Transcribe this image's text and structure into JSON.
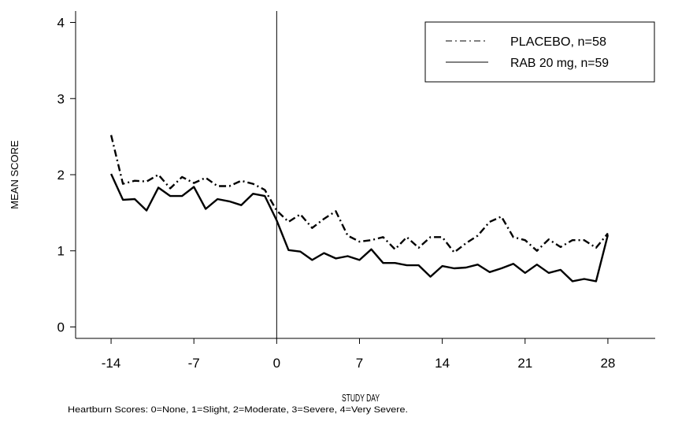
{
  "chart_data": {
    "type": "line",
    "title": "",
    "xlabel": "STUDY DAY",
    "ylabel": "MEAN SCORE",
    "footnote": "Heartburn Scores: 0=None, 1=Slight, 2=Moderate, 3=Severe, 4=Very Severe.",
    "xlim": [
      -17,
      32
    ],
    "ylim": [
      -0.15,
      4.15
    ],
    "x_ticks": [
      -14,
      -7,
      0,
      7,
      14,
      21,
      28
    ],
    "x_tick_labels": [
      "-14",
      "-7",
      "0",
      "7",
      "14",
      "21",
      "28"
    ],
    "y_ticks": [
      0,
      1,
      2,
      3,
      4
    ],
    "y_tick_labels": [
      "0",
      "1",
      "2",
      "3",
      "4"
    ],
    "reference_line_x": 0,
    "grid": false,
    "legend_position": "top-right",
    "x": [
      -14,
      -13,
      -12,
      -11,
      -10,
      -9,
      -8,
      -7,
      -6,
      -5,
      -4,
      -3,
      -2,
      -1,
      0,
      1,
      2,
      3,
      4,
      5,
      6,
      7,
      8,
      9,
      10,
      11,
      12,
      13,
      14,
      15,
      16,
      17,
      18,
      19,
      20,
      21,
      22,
      23,
      24,
      25,
      26,
      27,
      28
    ],
    "series": [
      {
        "name": "PLACEBO, n=58",
        "style": "dash-dot",
        "values": [
          2.52,
          1.88,
          1.92,
          1.91,
          2.0,
          1.82,
          1.97,
          1.89,
          1.96,
          1.85,
          1.85,
          1.92,
          1.88,
          1.8,
          1.53,
          1.38,
          1.48,
          1.3,
          1.42,
          1.52,
          1.2,
          1.12,
          1.14,
          1.18,
          1.02,
          1.18,
          1.04,
          1.18,
          1.18,
          0.98,
          1.1,
          1.2,
          1.38,
          1.45,
          1.18,
          1.14,
          1.0,
          1.15,
          1.05,
          1.14,
          1.14,
          1.04,
          1.23
        ]
      },
      {
        "name": "RAB 20 mg, n=59",
        "style": "solid",
        "values": [
          2.01,
          1.67,
          1.68,
          1.53,
          1.83,
          1.72,
          1.72,
          1.84,
          1.55,
          1.68,
          1.65,
          1.6,
          1.75,
          1.72,
          1.4,
          1.01,
          0.99,
          0.88,
          0.97,
          0.9,
          0.93,
          0.88,
          1.02,
          0.84,
          0.84,
          0.81,
          0.81,
          0.66,
          0.8,
          0.77,
          0.78,
          0.82,
          0.72,
          0.77,
          0.83,
          0.71,
          0.82,
          0.71,
          0.75,
          0.6,
          0.63,
          0.6,
          1.21
        ]
      }
    ]
  }
}
